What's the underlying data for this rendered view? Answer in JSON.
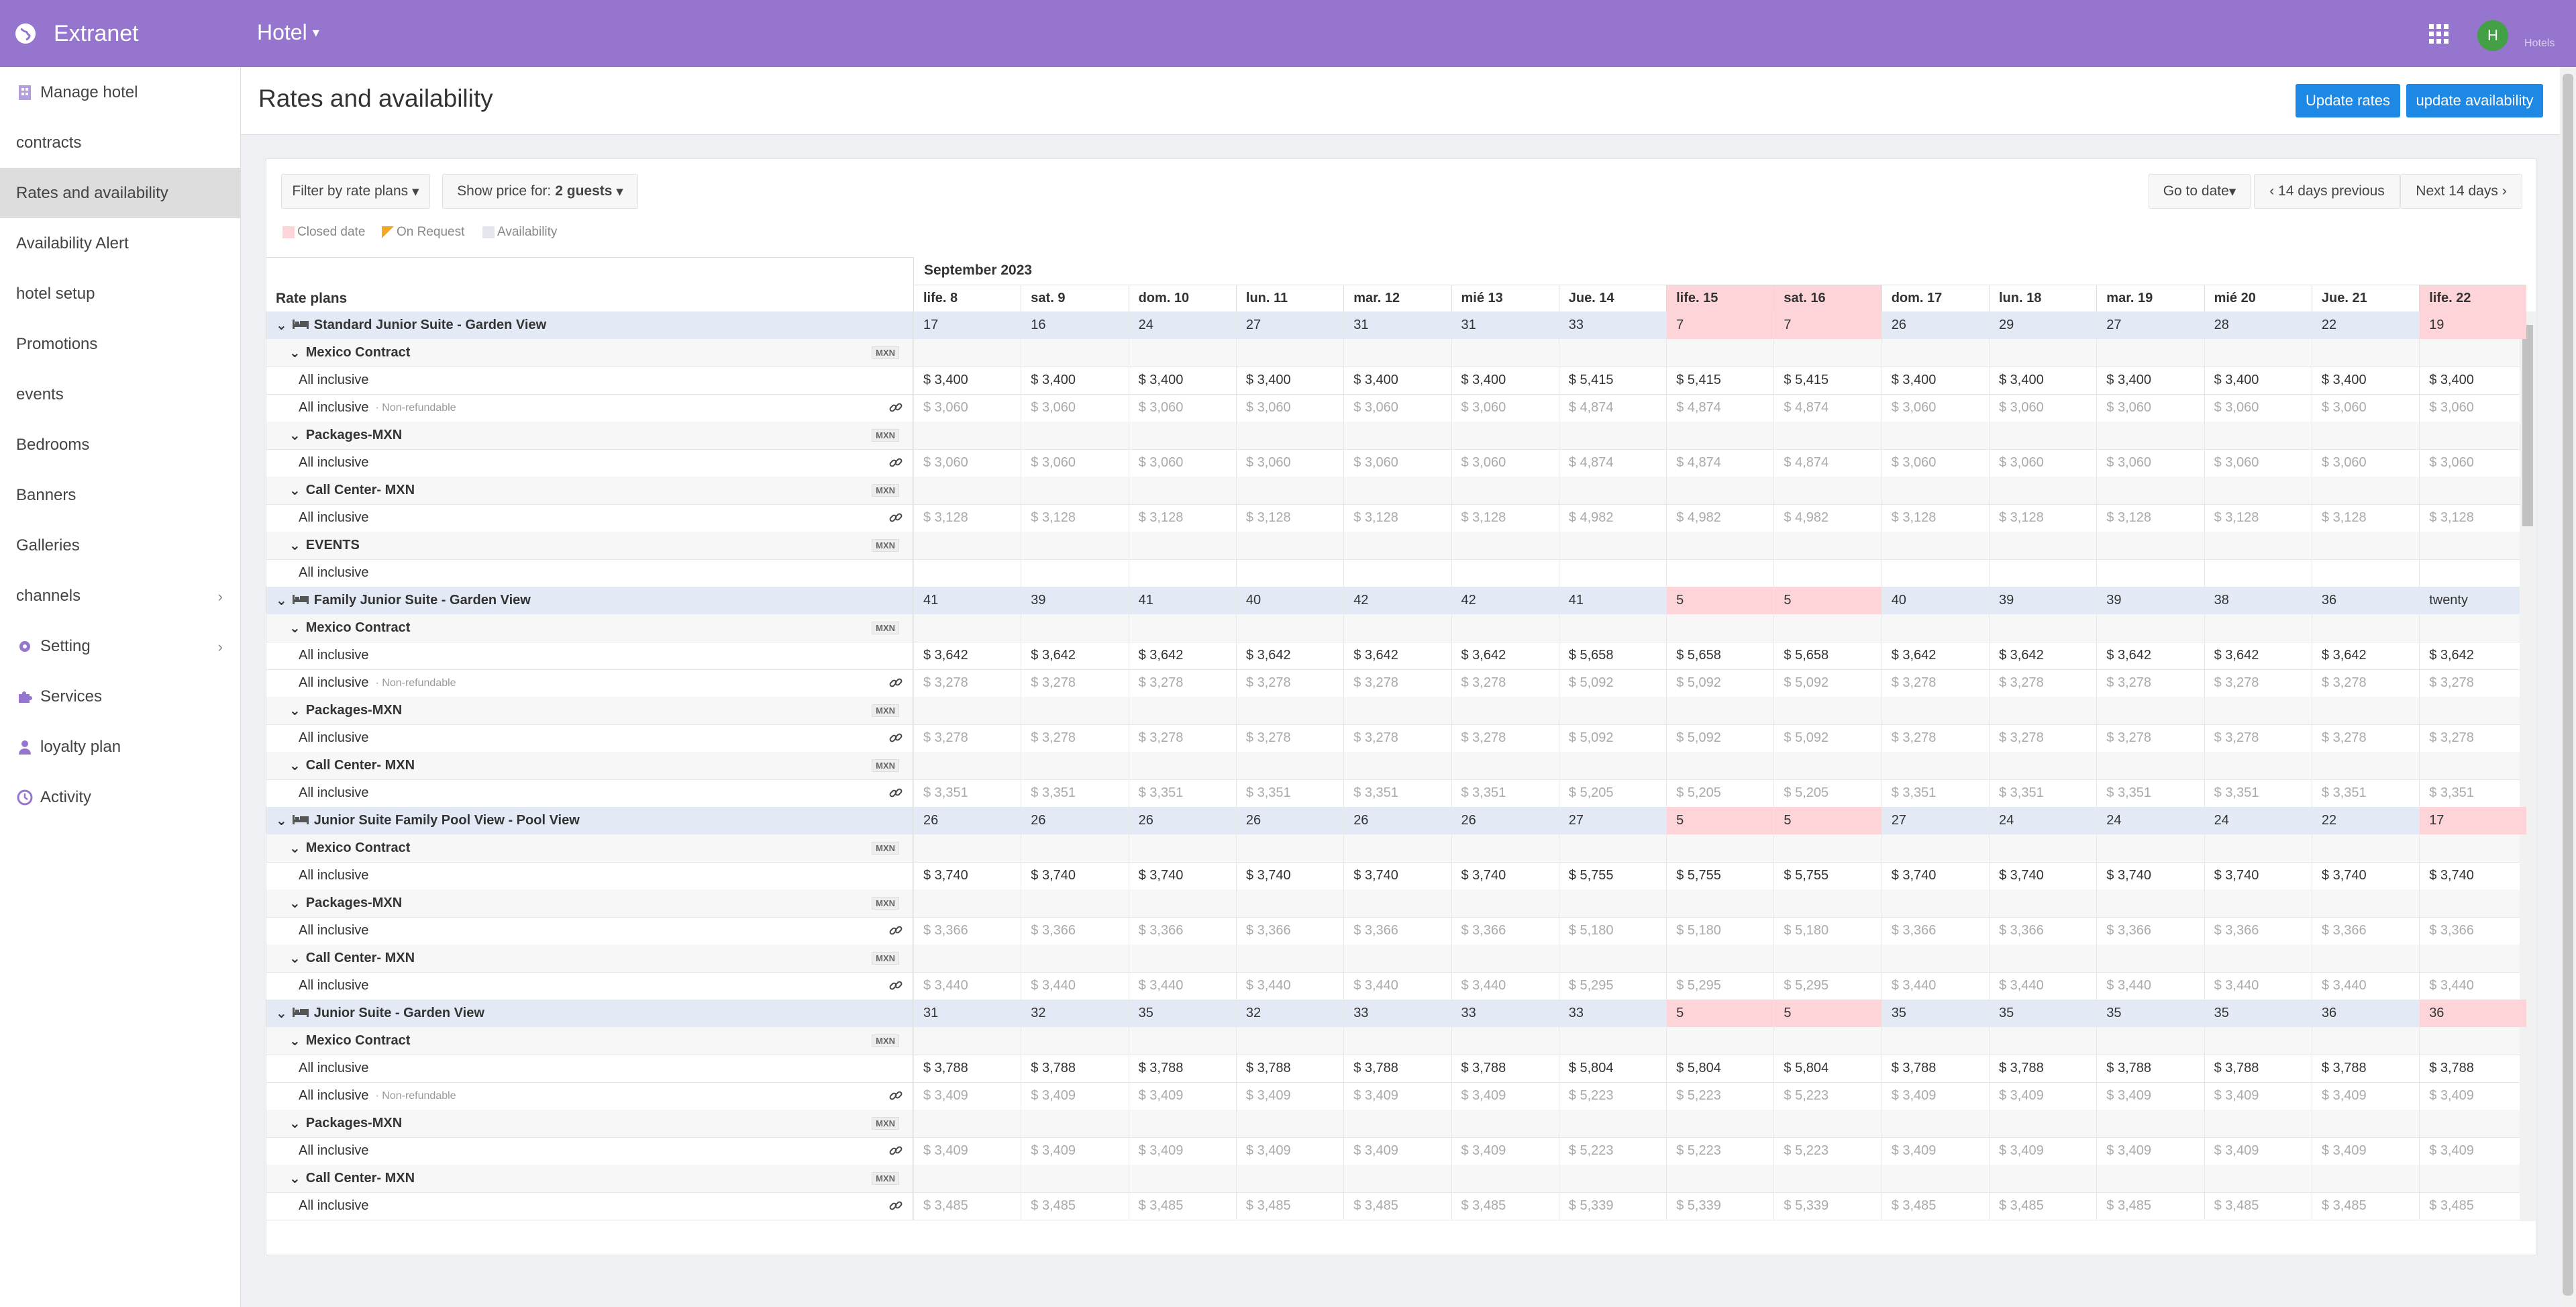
{
  "app": {
    "brand": "Extranet",
    "hotel_menu": "Hotel",
    "avatar_letter": "H",
    "avatar_label": "Hotels"
  },
  "sidebar": {
    "items": [
      {
        "label": "Manage hotel",
        "icon": "building-icon"
      },
      {
        "label": "contracts"
      },
      {
        "label": "Rates and availability",
        "active": true
      },
      {
        "label": "Availability Alert"
      },
      {
        "label": "hotel setup"
      },
      {
        "label": "Promotions"
      },
      {
        "label": "events"
      },
      {
        "label": "Bedrooms"
      },
      {
        "label": "Banners"
      },
      {
        "label": "Galleries"
      },
      {
        "label": "channels",
        "has_children": true
      },
      {
        "label": "Setting",
        "icon": "gear-icon",
        "has_children": true
      },
      {
        "label": "Services",
        "icon": "puzzle-icon"
      },
      {
        "label": "loyalty plan",
        "icon": "user-icon"
      },
      {
        "label": "Activity",
        "icon": "clock-icon"
      }
    ]
  },
  "header": {
    "title": "Rates and availability",
    "update_rates": "Update rates",
    "update_availability": "update availability"
  },
  "toolbar": {
    "filter": "Filter by rate plans",
    "show_price": "Show price for:",
    "guests": "2 guests",
    "go_to_date": "Go to date",
    "prev": "14 days previous",
    "next": "Next 14 days"
  },
  "legend": {
    "closed": "Closed date",
    "on_request": "On Request",
    "availability": "Availability"
  },
  "colors": {
    "topbar": "#9575cd",
    "primary_button": "#1e88e5",
    "closed": "#fdd5d9",
    "room_row": "#e3eaf6"
  },
  "grid": {
    "rate_plans_header": "Rate plans",
    "month": "September 2023",
    "days": [
      "life. 8",
      "sat. 9",
      "dom. 10",
      "lun. 11",
      "mar. 12",
      "mié 13",
      "Jue. 14",
      "life. 15",
      "sat. 16",
      "dom. 17",
      "lun. 18",
      "mar. 19",
      "mié 20",
      "Jue. 21",
      "life. 22"
    ],
    "rows": [
      {
        "type": "room",
        "label": "Standard Junior Suite - Garden View",
        "cells": [
          "17",
          "16",
          "24",
          "27",
          "31",
          "31",
          "33",
          "7",
          "7",
          "26",
          "29",
          "27",
          "28",
          "22",
          "19"
        ],
        "closed": [
          7,
          8,
          14
        ]
      },
      {
        "type": "contract",
        "label": "Mexico Contract",
        "badge": "MXN"
      },
      {
        "type": "plan",
        "label": "All inclusive",
        "cells": [
          "$ 3,400",
          "$ 3,400",
          "$ 3,400",
          "$ 3,400",
          "$ 3,400",
          "$ 3,400",
          "$ 5,415",
          "$ 5,415",
          "$ 5,415",
          "$ 3,400",
          "$ 3,400",
          "$ 3,400",
          "$ 3,400",
          "$ 3,400",
          "$ 3,400"
        ]
      },
      {
        "type": "plan",
        "label": "All inclusive",
        "note": "· Non-refundable",
        "link": true,
        "grey": true,
        "cells": [
          "$ 3,060",
          "$ 3,060",
          "$ 3,060",
          "$ 3,060",
          "$ 3,060",
          "$ 3,060",
          "$ 4,874",
          "$ 4,874",
          "$ 4,874",
          "$ 3,060",
          "$ 3,060",
          "$ 3,060",
          "$ 3,060",
          "$ 3,060",
          "$ 3,060"
        ]
      },
      {
        "type": "contract",
        "label": "Packages-MXN",
        "badge": "MXN"
      },
      {
        "type": "plan",
        "label": "All inclusive",
        "link": true,
        "grey": true,
        "cells": [
          "$ 3,060",
          "$ 3,060",
          "$ 3,060",
          "$ 3,060",
          "$ 3,060",
          "$ 3,060",
          "$ 4,874",
          "$ 4,874",
          "$ 4,874",
          "$ 3,060",
          "$ 3,060",
          "$ 3,060",
          "$ 3,060",
          "$ 3,060",
          "$ 3,060"
        ]
      },
      {
        "type": "contract",
        "label": "Call Center- MXN",
        "badge": "MXN"
      },
      {
        "type": "plan",
        "label": "All inclusive",
        "link": true,
        "grey": true,
        "cells": [
          "$ 3,128",
          "$ 3,128",
          "$ 3,128",
          "$ 3,128",
          "$ 3,128",
          "$ 3,128",
          "$ 4,982",
          "$ 4,982",
          "$ 4,982",
          "$ 3,128",
          "$ 3,128",
          "$ 3,128",
          "$ 3,128",
          "$ 3,128",
          "$ 3,128"
        ]
      },
      {
        "type": "contract",
        "label": "EVENTS",
        "badge": "MXN"
      },
      {
        "type": "plan",
        "label": "All inclusive",
        "cells": [
          "",
          "",
          "",
          "",
          "",
          "",
          "",
          "",
          "",
          "",
          "",
          "",
          "",
          "",
          ""
        ]
      },
      {
        "type": "room",
        "label": "Family Junior Suite - Garden View",
        "cells": [
          "41",
          "39",
          "41",
          "40",
          "42",
          "42",
          "41",
          "5",
          "5",
          "40",
          "39",
          "39",
          "38",
          "36",
          "twenty"
        ],
        "closed": [
          7,
          8
        ]
      },
      {
        "type": "contract",
        "label": "Mexico Contract",
        "badge": "MXN"
      },
      {
        "type": "plan",
        "label": "All inclusive",
        "cells": [
          "$ 3,642",
          "$ 3,642",
          "$ 3,642",
          "$ 3,642",
          "$ 3,642",
          "$ 3,642",
          "$ 5,658",
          "$ 5,658",
          "$ 5,658",
          "$ 3,642",
          "$ 3,642",
          "$ 3,642",
          "$ 3,642",
          "$ 3,642",
          "$ 3,642"
        ]
      },
      {
        "type": "plan",
        "label": "All inclusive",
        "note": "· Non-refundable",
        "link": true,
        "grey": true,
        "cells": [
          "$ 3,278",
          "$ 3,278",
          "$ 3,278",
          "$ 3,278",
          "$ 3,278",
          "$ 3,278",
          "$ 5,092",
          "$ 5,092",
          "$ 5,092",
          "$ 3,278",
          "$ 3,278",
          "$ 3,278",
          "$ 3,278",
          "$ 3,278",
          "$ 3,278"
        ]
      },
      {
        "type": "contract",
        "label": "Packages-MXN",
        "badge": "MXN"
      },
      {
        "type": "plan",
        "label": "All inclusive",
        "link": true,
        "grey": true,
        "cells": [
          "$ 3,278",
          "$ 3,278",
          "$ 3,278",
          "$ 3,278",
          "$ 3,278",
          "$ 3,278",
          "$ 5,092",
          "$ 5,092",
          "$ 5,092",
          "$ 3,278",
          "$ 3,278",
          "$ 3,278",
          "$ 3,278",
          "$ 3,278",
          "$ 3,278"
        ]
      },
      {
        "type": "contract",
        "label": "Call Center- MXN",
        "badge": "MXN"
      },
      {
        "type": "plan",
        "label": "All inclusive",
        "link": true,
        "grey": true,
        "cells": [
          "$ 3,351",
          "$ 3,351",
          "$ 3,351",
          "$ 3,351",
          "$ 3,351",
          "$ 3,351",
          "$ 5,205",
          "$ 5,205",
          "$ 5,205",
          "$ 3,351",
          "$ 3,351",
          "$ 3,351",
          "$ 3,351",
          "$ 3,351",
          "$ 3,351"
        ]
      },
      {
        "type": "room",
        "label": "Junior Suite Family Pool View - Pool View",
        "cells": [
          "26",
          "26",
          "26",
          "26",
          "26",
          "26",
          "27",
          "5",
          "5",
          "27",
          "24",
          "24",
          "24",
          "22",
          "17"
        ],
        "closed": [
          7,
          8,
          14
        ]
      },
      {
        "type": "contract",
        "label": "Mexico Contract",
        "badge": "MXN"
      },
      {
        "type": "plan",
        "label": "All inclusive",
        "cells": [
          "$ 3,740",
          "$ 3,740",
          "$ 3,740",
          "$ 3,740",
          "$ 3,740",
          "$ 3,740",
          "$ 5,755",
          "$ 5,755",
          "$ 5,755",
          "$ 3,740",
          "$ 3,740",
          "$ 3,740",
          "$ 3,740",
          "$ 3,740",
          "$ 3,740"
        ]
      },
      {
        "type": "contract",
        "label": "Packages-MXN",
        "badge": "MXN"
      },
      {
        "type": "plan",
        "label": "All inclusive",
        "link": true,
        "grey": true,
        "cells": [
          "$ 3,366",
          "$ 3,366",
          "$ 3,366",
          "$ 3,366",
          "$ 3,366",
          "$ 3,366",
          "$ 5,180",
          "$ 5,180",
          "$ 5,180",
          "$ 3,366",
          "$ 3,366",
          "$ 3,366",
          "$ 3,366",
          "$ 3,366",
          "$ 3,366"
        ]
      },
      {
        "type": "contract",
        "label": "Call Center- MXN",
        "badge": "MXN"
      },
      {
        "type": "plan",
        "label": "All inclusive",
        "link": true,
        "grey": true,
        "cells": [
          "$ 3,440",
          "$ 3,440",
          "$ 3,440",
          "$ 3,440",
          "$ 3,440",
          "$ 3,440",
          "$ 5,295",
          "$ 5,295",
          "$ 5,295",
          "$ 3,440",
          "$ 3,440",
          "$ 3,440",
          "$ 3,440",
          "$ 3,440",
          "$ 3,440"
        ]
      },
      {
        "type": "room",
        "label": "Junior Suite - Garden View",
        "cells": [
          "31",
          "32",
          "35",
          "32",
          "33",
          "33",
          "33",
          "5",
          "5",
          "35",
          "35",
          "35",
          "35",
          "36",
          "36"
        ],
        "closed": [
          7,
          8,
          14
        ]
      },
      {
        "type": "contract",
        "label": "Mexico Contract",
        "badge": "MXN"
      },
      {
        "type": "plan",
        "label": "All inclusive",
        "cells": [
          "$ 3,788",
          "$ 3,788",
          "$ 3,788",
          "$ 3,788",
          "$ 3,788",
          "$ 3,788",
          "$ 5,804",
          "$ 5,804",
          "$ 5,804",
          "$ 3,788",
          "$ 3,788",
          "$ 3,788",
          "$ 3,788",
          "$ 3,788",
          "$ 3,788"
        ]
      },
      {
        "type": "plan",
        "label": "All inclusive",
        "note": "· Non-refundable",
        "link": true,
        "grey": true,
        "cells": [
          "$ 3,409",
          "$ 3,409",
          "$ 3,409",
          "$ 3,409",
          "$ 3,409",
          "$ 3,409",
          "$ 5,223",
          "$ 5,223",
          "$ 5,223",
          "$ 3,409",
          "$ 3,409",
          "$ 3,409",
          "$ 3,409",
          "$ 3,409",
          "$ 3,409"
        ]
      },
      {
        "type": "contract",
        "label": "Packages-MXN",
        "badge": "MXN"
      },
      {
        "type": "plan",
        "label": "All inclusive",
        "link": true,
        "grey": true,
        "cells": [
          "$ 3,409",
          "$ 3,409",
          "$ 3,409",
          "$ 3,409",
          "$ 3,409",
          "$ 3,409",
          "$ 5,223",
          "$ 5,223",
          "$ 5,223",
          "$ 3,409",
          "$ 3,409",
          "$ 3,409",
          "$ 3,409",
          "$ 3,409",
          "$ 3,409"
        ]
      },
      {
        "type": "contract",
        "label": "Call Center- MXN",
        "badge": "MXN"
      },
      {
        "type": "plan",
        "label": "All inclusive",
        "link": true,
        "grey": true,
        "cells": [
          "$ 3,485",
          "$ 3,485",
          "$ 3,485",
          "$ 3,485",
          "$ 3,485",
          "$ 3,485",
          "$ 5,339",
          "$ 5,339",
          "$ 5,339",
          "$ 3,485",
          "$ 3,485",
          "$ 3,485",
          "$ 3,485",
          "$ 3,485",
          "$ 3,485"
        ]
      }
    ]
  }
}
